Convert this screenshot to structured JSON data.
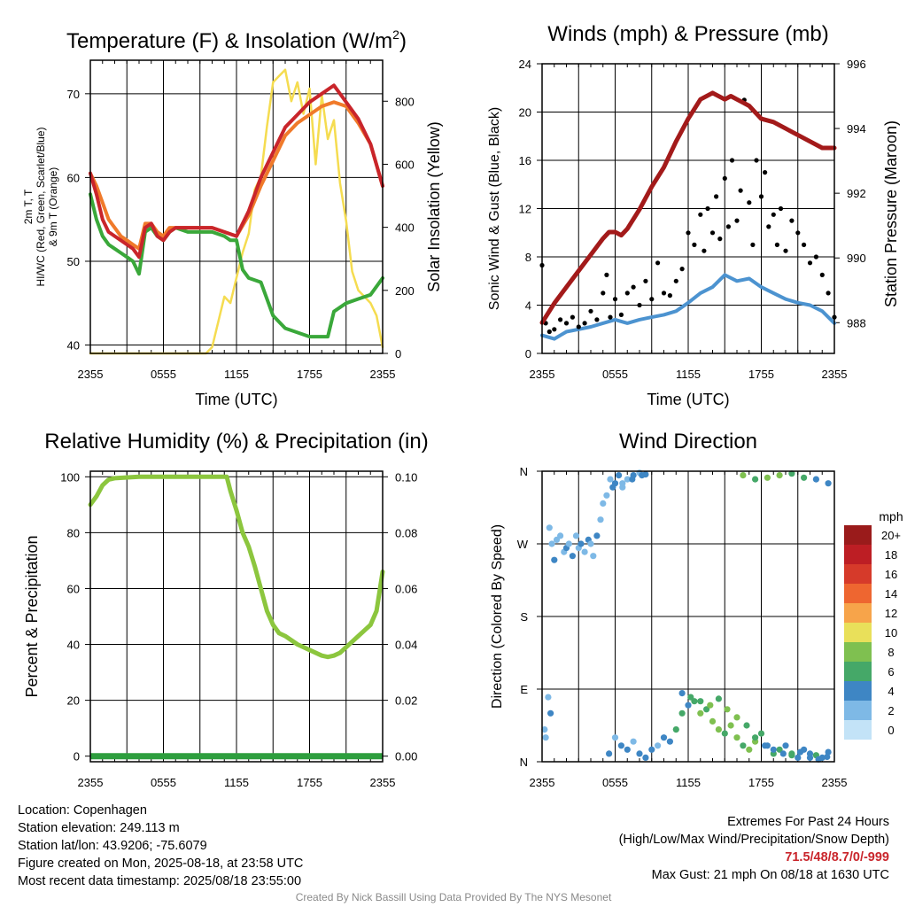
{
  "colors": {
    "red_temp": "#c9252b",
    "green_dew": "#3aa83a",
    "orange_9m": "#f07a2a",
    "yellow_sun": "#f5dc50",
    "blue_wind": "#4c93d0",
    "black_gust": "#000000",
    "maroon_pressure": "#a31a1a",
    "rh_green": "#8cc63e",
    "precip_green": "#2e9e3e",
    "grid": "#000000"
  },
  "chart_data": [
    {
      "id": "temp",
      "type": "line",
      "title": "Temperature (F) & Insolation (W/m²)",
      "xlabel": "Time (UTC)",
      "ylabel_left": "2m T, Td, HI/WC (Red, Green, Scarlet/Blue) & 9m T (Orange)",
      "ylabel_right": "Solar Insolation (Yellow)",
      "x_ticks": [
        "2355",
        "0555",
        "1155",
        "1755",
        "2355"
      ],
      "x_range_hours": [
        0,
        24
      ],
      "ylim_left": [
        39,
        74
      ],
      "yticks_left": [
        40,
        50,
        60,
        70
      ],
      "ylim_right": [
        0,
        930
      ],
      "yticks_right": [
        0,
        200,
        400,
        600,
        800
      ],
      "grid": true,
      "series": [
        {
          "name": "2m T",
          "color": "#c9252b",
          "axis": "left",
          "x": [
            0,
            0.5,
            1,
            1.5,
            2,
            2.5,
            3,
            3.5,
            4,
            4.5,
            5,
            5.5,
            6,
            6.5,
            7,
            8,
            9,
            10,
            11,
            12,
            13,
            14,
            15,
            16,
            17,
            18,
            19,
            19.5,
            20,
            21,
            22,
            23,
            24
          ],
          "y": [
            60.5,
            58,
            55,
            53.5,
            53,
            52.5,
            52,
            51.5,
            50.5,
            54,
            54.5,
            53,
            52.5,
            53.5,
            54,
            54,
            54,
            54,
            53.5,
            53,
            56,
            60,
            63,
            66,
            67.5,
            69,
            70,
            70.5,
            71,
            69,
            67,
            64,
            59
          ]
        },
        {
          "name": "Td",
          "color": "#3aa83a",
          "axis": "left",
          "x": [
            0,
            0.5,
            1,
            1.5,
            2,
            2.5,
            3,
            3.5,
            4,
            4.5,
            5,
            5.5,
            6,
            6.5,
            7,
            8,
            9,
            10,
            11,
            11.5,
            12,
            12.5,
            13,
            14,
            15,
            16,
            17,
            18,
            19,
            19.5,
            20,
            21,
            22,
            23,
            24
          ],
          "y": [
            58,
            55,
            53,
            52,
            51.5,
            51,
            50.5,
            50,
            48.5,
            53.5,
            54,
            53,
            52.5,
            53.5,
            54,
            53.5,
            53.5,
            53.5,
            53,
            52.5,
            52.5,
            49,
            48,
            47.5,
            43.5,
            42,
            41.5,
            41,
            41,
            41,
            44,
            45,
            45.5,
            46,
            48
          ]
        },
        {
          "name": "9m T",
          "color": "#f07a2a",
          "axis": "left",
          "x": [
            0,
            0.5,
            1,
            1.5,
            2,
            2.5,
            3,
            3.5,
            4,
            4.5,
            5,
            5.5,
            6,
            6.5,
            7,
            8,
            9,
            10,
            11,
            12,
            13,
            14,
            15,
            16,
            17,
            18,
            19,
            20,
            21,
            22,
            23,
            24
          ],
          "y": [
            60.5,
            59,
            57,
            55,
            54,
            53,
            52.5,
            52,
            51.5,
            54.5,
            54.5,
            53.5,
            53,
            54,
            54,
            54,
            54,
            54,
            53.5,
            53,
            55.5,
            59,
            62,
            65,
            66.5,
            67.5,
            68.5,
            69,
            68.5,
            66.5,
            64,
            59
          ]
        },
        {
          "name": "Solar",
          "color": "#f5dc50",
          "axis": "right",
          "x": [
            0,
            2,
            4,
            6,
            8,
            9,
            9.5,
            10,
            10.5,
            11,
            11.5,
            12,
            12.5,
            13,
            13.5,
            14,
            14.5,
            15,
            15.5,
            16,
            16.5,
            17,
            17.5,
            18,
            18.5,
            19,
            19.5,
            20,
            20.5,
            21,
            21.5,
            22,
            22.5,
            23,
            23.5,
            24
          ],
          "y": [
            0,
            0,
            0,
            0,
            0,
            0,
            0,
            20,
            100,
            180,
            160,
            240,
            320,
            380,
            520,
            560,
            720,
            860,
            880,
            900,
            800,
            860,
            760,
            840,
            600,
            820,
            680,
            740,
            540,
            420,
            260,
            200,
            180,
            160,
            120,
            20
          ]
        }
      ]
    },
    {
      "id": "wind",
      "type": "line",
      "title": "Winds (mph) & Pressure (mb)",
      "xlabel": "Time (UTC)",
      "ylabel_left": "Sonic Wind & Gust (Blue, Black)",
      "ylabel_right": "Station Pressure (Maroon)",
      "x_ticks": [
        "2355",
        "0555",
        "1155",
        "1755",
        "2355"
      ],
      "x_range_hours": [
        0,
        24
      ],
      "ylim_left": [
        0,
        24
      ],
      "yticks_left": [
        0,
        4,
        8,
        12,
        16,
        20,
        24
      ],
      "ylim_right": [
        987.05,
        996
      ],
      "yticks_right": [
        988,
        990,
        992,
        994,
        996
      ],
      "grid": true,
      "series": [
        {
          "name": "Sonic Wind",
          "color": "#4c93d0",
          "axis": "left",
          "x": [
            0,
            1,
            2,
            3,
            4,
            5,
            6,
            7,
            8,
            9,
            10,
            11,
            12,
            13,
            14,
            15,
            16,
            17,
            18,
            19,
            20,
            21,
            22,
            23,
            24
          ],
          "y": [
            1.5,
            1.2,
            1.8,
            2.0,
            2.2,
            2.5,
            2.8,
            2.5,
            2.8,
            3.0,
            3.2,
            3.5,
            4.2,
            5.0,
            5.5,
            6.5,
            6.0,
            6.2,
            5.5,
            5.0,
            4.5,
            4.2,
            4.0,
            3.5,
            2.5
          ]
        },
        {
          "name": "Gust",
          "color": "#000000",
          "axis": "left",
          "x": [
            0,
            0.3,
            0.6,
            1,
            1.5,
            2,
            2.5,
            3,
            3.5,
            4,
            4.5,
            5,
            5.3,
            5.6,
            6,
            6.5,
            7,
            7.5,
            8,
            8.5,
            9,
            9.5,
            10,
            10.5,
            11,
            11.5,
            12,
            12.5,
            13,
            13.3,
            13.6,
            14,
            14.3,
            14.6,
            15,
            15.3,
            15.6,
            16,
            16.3,
            16.6,
            17,
            17.3,
            17.6,
            18,
            18.3,
            18.6,
            19,
            19.3,
            19.6,
            20,
            20.5,
            21,
            21.5,
            22,
            22.5,
            23,
            23.5,
            24
          ],
          "y": [
            7.3,
            2.5,
            1.8,
            2.0,
            2.8,
            2.5,
            3.0,
            2.2,
            2.5,
            3.5,
            2.8,
            5.0,
            6.5,
            3.0,
            4.5,
            3.2,
            5.0,
            5.5,
            4.0,
            6.0,
            4.5,
            7.5,
            5.0,
            4.8,
            6.0,
            7.0,
            10.0,
            9.0,
            11.5,
            8.5,
            12.0,
            10.0,
            13.0,
            9.5,
            14.5,
            10.5,
            16.0,
            11.0,
            13.5,
            21.0,
            12.5,
            9.0,
            16.0,
            13.0,
            15.0,
            10.5,
            11.5,
            9.0,
            12.0,
            8.5,
            11.0,
            10.0,
            9.0,
            7.5,
            8.0,
            6.5,
            5.0,
            3.0
          ]
        },
        {
          "name": "Pressure",
          "color": "#a31a1a",
          "axis": "right",
          "x": [
            0,
            1,
            2,
            3,
            4,
            5,
            5.5,
            6,
            6.5,
            7,
            7.5,
            8,
            9,
            10,
            11,
            12,
            13,
            14,
            15,
            15.5,
            16,
            16.5,
            17,
            17.5,
            18,
            19,
            20,
            21,
            22,
            23,
            24
          ],
          "y": [
            988.0,
            988.6,
            989.1,
            989.6,
            990.1,
            990.6,
            990.8,
            990.8,
            990.7,
            990.9,
            991.2,
            991.5,
            992.2,
            992.8,
            993.6,
            994.3,
            994.9,
            995.1,
            994.9,
            995.0,
            994.9,
            994.8,
            994.7,
            994.5,
            994.3,
            994.2,
            994.0,
            993.8,
            993.6,
            993.4,
            993.4
          ]
        }
      ]
    },
    {
      "id": "rh",
      "type": "line",
      "title": "Relative Humidity (%) & Precipitation (in)",
      "xlabel": "",
      "ylabel_left": "Percent & Precipitation",
      "x_ticks": [
        "2355",
        "0555",
        "1155",
        "1755",
        "2355"
      ],
      "x_range_hours": [
        0,
        24
      ],
      "ylim_left": [
        -2,
        102
      ],
      "yticks_left": [
        0,
        20,
        40,
        60,
        80,
        100
      ],
      "ylim_right": [
        -0.002,
        0.102
      ],
      "yticks_right": [
        "0.00",
        "0.02",
        "0.04",
        "0.06",
        "0.08",
        "0.10"
      ],
      "grid": true,
      "series": [
        {
          "name": "RH",
          "color": "#8cc63e",
          "axis": "left",
          "x": [
            0,
            0.5,
            1,
            1.5,
            2,
            4,
            6,
            8,
            10,
            11.2,
            11.5,
            12,
            12.5,
            13,
            13.5,
            14,
            14.5,
            15,
            15.5,
            16,
            17,
            18,
            19,
            19.5,
            20,
            20.5,
            21,
            21.5,
            22,
            22.5,
            23,
            23.5,
            24
          ],
          "y": [
            90,
            93,
            97,
            99,
            99.5,
            100,
            100,
            100,
            100,
            100,
            95,
            88,
            80,
            75,
            68,
            60,
            52,
            47,
            44,
            43,
            40,
            38,
            36,
            35.5,
            36,
            37,
            39,
            41,
            43,
            45,
            47,
            52,
            66
          ]
        },
        {
          "name": "Precipitation",
          "color": "#2e9e3e",
          "axis": "left",
          "x": [
            0,
            24
          ],
          "y": [
            0,
            0
          ]
        }
      ]
    },
    {
      "id": "dir",
      "type": "scatter",
      "title": "Wind Direction",
      "xlabel": "",
      "ylabel_left": "Direction (Colored By Speed)",
      "x_ticks": [
        "2355",
        "0555",
        "1155",
        "1755",
        "2355"
      ],
      "x_range_hours": [
        0,
        24
      ],
      "y_tick_labels": [
        "N",
        "E",
        "S",
        "W",
        "N"
      ],
      "y_tick_values": [
        0,
        90,
        180,
        270,
        360
      ],
      "ylim": [
        0,
        360
      ],
      "grid": true,
      "colorbar_title": "mph",
      "colorbar_labels": [
        "20+",
        "18",
        "16",
        "14",
        "12",
        "10",
        "8",
        "6",
        "4",
        "2",
        "0"
      ],
      "colorbar_colors": [
        "#9a1b1b",
        "#bd1e24",
        "#d63a2a",
        "#ee6630",
        "#f7a44a",
        "#e9e05a",
        "#7fc050",
        "#45a868",
        "#3e86c4",
        "#7eb9e6",
        "#c3e3f7"
      ],
      "points_x": [
        0.2,
        0.3,
        0.6,
        0.8,
        1.0,
        1.2,
        1.5,
        1.8,
        2.0,
        2.2,
        2.5,
        2.8,
        3.0,
        3.2,
        3.5,
        3.8,
        4.0,
        4.2,
        4.5,
        4.8,
        5.0,
        5.3,
        5.6,
        6.0,
        6.3,
        6.6,
        7.0,
        7.5,
        8.0,
        8.5,
        0.5,
        0.7,
        5.5,
        6.0,
        6.5,
        7.0,
        7.5,
        8.0,
        8.5,
        9.0,
        9.5,
        10.0,
        10.5,
        11.0,
        11.5,
        12.0,
        12.5,
        13.0,
        13.5,
        14.0,
        14.5,
        15.0,
        15.5,
        16.0,
        16.5,
        17.0,
        17.5,
        18.0,
        18.5,
        19.0,
        19.5,
        20.0,
        20.5,
        21.0,
        21.5,
        22.0,
        22.5,
        23.0,
        23.5,
        11.5,
        12.2,
        13.0,
        13.8,
        14.5,
        15.2,
        16.0,
        16.8,
        17.5,
        18.3,
        19.0,
        19.8,
        20.5,
        21.2,
        22.0,
        22.7,
        23.4,
        16.5,
        17.5,
        18.5,
        19.5,
        20.5,
        21.5,
        22.5,
        23.5,
        5.8,
        6.6,
        7.4,
        8.2
      ],
      "points_dir": [
        40,
        30,
        290,
        270,
        250,
        275,
        280,
        260,
        265,
        270,
        255,
        280,
        265,
        270,
        260,
        275,
        270,
        255,
        280,
        300,
        320,
        330,
        350,
        345,
        355,
        340,
        350,
        355,
        358,
        356,
        80,
        60,
        10,
        30,
        20,
        15,
        25,
        10,
        5,
        15,
        20,
        30,
        25,
        40,
        60,
        70,
        75,
        60,
        65,
        50,
        40,
        35,
        45,
        30,
        20,
        15,
        25,
        35,
        20,
        10,
        15,
        20,
        10,
        5,
        15,
        10,
        8,
        5,
        12,
        85,
        80,
        75,
        70,
        78,
        65,
        55,
        45,
        30,
        20,
        15,
        10,
        8,
        12,
        5,
        3,
        6,
        355,
        350,
        352,
        355,
        357,
        352,
        350,
        345,
        340,
        345,
        350,
        355
      ],
      "points_speed": [
        1,
        2,
        1,
        2,
        3,
        2,
        1,
        2,
        3,
        2,
        4,
        2,
        1,
        3,
        2,
        4,
        2,
        1,
        3,
        2,
        1,
        2,
        1,
        3,
        4,
        2,
        1,
        4,
        2,
        3,
        2,
        3,
        4,
        2,
        3,
        4,
        2,
        3,
        4,
        3,
        2,
        4,
        3,
        5,
        5,
        4,
        6,
        7,
        6,
        8,
        7,
        6,
        8,
        7,
        6,
        8,
        7,
        6,
        4,
        5,
        6,
        4,
        5,
        4,
        3,
        4,
        5,
        4,
        3,
        4,
        5,
        6,
        7,
        6,
        8,
        7,
        6,
        5,
        4,
        3,
        4,
        5,
        4,
        3,
        4,
        3,
        7,
        6,
        8,
        7,
        6,
        5,
        4,
        3,
        3,
        2,
        4,
        3
      ]
    }
  ],
  "footer": {
    "location": "Location: Copenhagen",
    "elevation": "Station elevation: 249.113 m",
    "latlon": "Station lat/lon: 43.9206; -75.6079",
    "created": "Figure created on Mon, 2025-08-18, at 23:58 UTC",
    "recent": "Most recent data timestamp: 2025/08/18 23:55:00",
    "extremes_title": "Extremes For Past 24 Hours",
    "extremes_desc": "(High/Low/Max Wind/Precipitation/Snow Depth)",
    "extremes_values": "71.5/48/8.7/0/-999",
    "max_gust": "Max Gust: 21 mph On 08/18 at 1630 UTC",
    "credit": "Created By Nick Bassill Using Data Provided By The NYS Mesonet"
  }
}
